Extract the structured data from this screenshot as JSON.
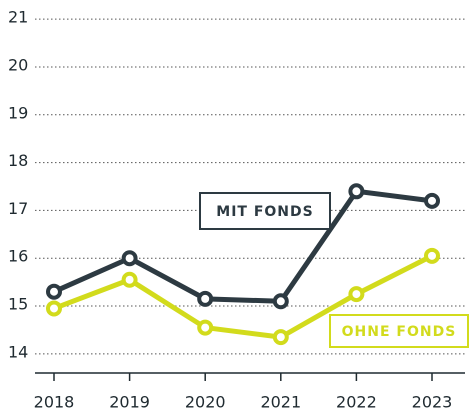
{
  "chart_data": {
    "type": "line",
    "categories": [
      "2018",
      "2019",
      "2020",
      "2021",
      "2022",
      "2023"
    ],
    "series": [
      {
        "name": "MIT FONDS",
        "color": "#2d3a42",
        "values": [
          15.3,
          16.0,
          15.15,
          15.1,
          17.4,
          17.2
        ]
      },
      {
        "name": "OHNE FONDS",
        "color": "#d2db1c",
        "values": [
          14.95,
          15.55,
          14.55,
          14.35,
          15.25,
          16.05
        ]
      }
    ],
    "ylim": [
      13.6,
      21.4
    ],
    "yticks": [
      14,
      15,
      16,
      17,
      18,
      19,
      20,
      21
    ],
    "grid": true
  }
}
